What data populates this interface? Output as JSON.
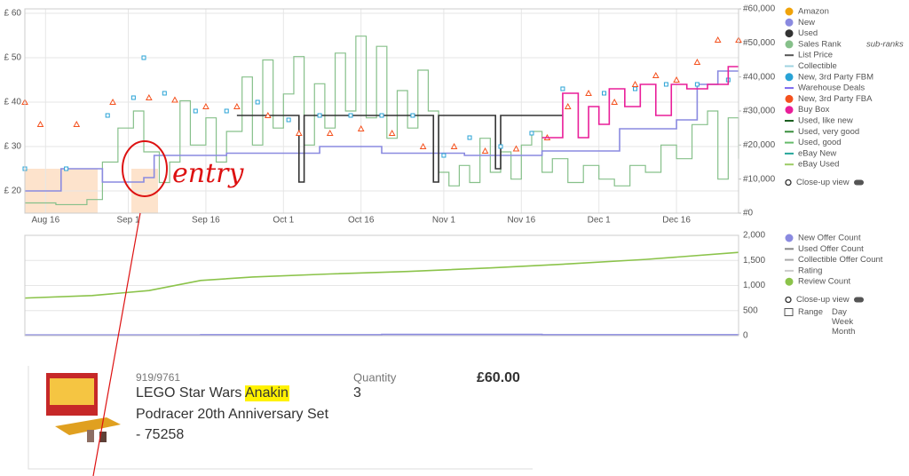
{
  "chart_data": [
    {
      "type": "line",
      "xlim": [
        "Aug 12",
        "Dec 28"
      ],
      "xticks": [
        "Aug 16",
        "Sep 1",
        "Sep 16",
        "Oct 1",
        "Oct 16",
        "Nov 1",
        "Nov 16",
        "Dec 1",
        "Dec 16"
      ],
      "ylim": [
        15,
        61
      ],
      "yticks": [
        {
          "value": 20,
          "label": "£ 20"
        },
        {
          "value": 30,
          "label": "£ 30"
        },
        {
          "value": 40,
          "label": "£ 40"
        },
        {
          "value": 50,
          "label": "£ 50"
        },
        {
          "value": 60,
          "label": "£ 60"
        }
      ],
      "y2lim": [
        0,
        60000
      ],
      "y2ticks": [
        {
          "value": 0,
          "label": "#0"
        },
        {
          "value": 10000,
          "label": "#10,000"
        },
        {
          "value": 20000,
          "label": "#20,000"
        },
        {
          "value": 30000,
          "label": "#30,000"
        },
        {
          "value": 40000,
          "label": "#40,000"
        },
        {
          "value": 50000,
          "label": "#50,000"
        },
        {
          "value": 60000,
          "label": "#60,000"
        }
      ],
      "grid": true,
      "legend": "right",
      "series": [
        {
          "name": "Amazon",
          "color": "#f0a30a",
          "legend_symbol": "circle",
          "style": "line",
          "x": [],
          "values": []
        },
        {
          "name": "New",
          "color": "#8a8ae0",
          "legend_symbol": "circle",
          "style": "step",
          "x": [
            "Aug 12",
            "Aug 18",
            "Aug 19",
            "Aug 26",
            "Aug 27",
            "Sep 4",
            "Sep 6",
            "Sep 20",
            "Oct 8",
            "Oct 20",
            "Nov 5",
            "Nov 20",
            "Dec 1",
            "Dec 5",
            "Dec 16",
            "Dec 20",
            "Dec 24",
            "Dec 28"
          ],
          "values": [
            20,
            20,
            25,
            25,
            22,
            23,
            28,
            28.5,
            30,
            28.5,
            28,
            29,
            29,
            34,
            36,
            44,
            47,
            47
          ]
        },
        {
          "name": "Used",
          "color": "#333333",
          "legend_symbol": "circle",
          "style": "step",
          "x": [
            "Sep 22",
            "Oct 3",
            "Oct 4",
            "Oct 5",
            "Oct 29",
            "Oct 30",
            "Oct 31",
            "Nov 10",
            "Nov 11",
            "Nov 12",
            "Nov 24"
          ],
          "values": [
            37,
            37,
            22,
            37,
            37,
            22,
            37,
            37,
            25,
            37,
            37
          ]
        },
        {
          "name": "Sales Rank",
          "color": "#86c08a",
          "legend_symbol": "circle",
          "style": "step",
          "axis": "y2",
          "x": [
            "Aug 12",
            "Aug 18",
            "Aug 24",
            "Aug 27",
            "Aug 30",
            "Sep 2",
            "Sep 4",
            "Sep 7",
            "Sep 9",
            "Sep 11",
            "Sep 13",
            "Sep 16",
            "Sep 18",
            "Sep 20",
            "Sep 23",
            "Sep 25",
            "Sep 27",
            "Sep 29",
            "Oct 1",
            "Oct 3",
            "Oct 5",
            "Oct 7",
            "Oct 9",
            "Oct 11",
            "Oct 13",
            "Oct 15",
            "Oct 17",
            "Oct 19",
            "Oct 21",
            "Oct 23",
            "Oct 25",
            "Oct 27",
            "Oct 29",
            "Oct 31",
            "Nov 2",
            "Nov 4",
            "Nov 6",
            "Nov 8",
            "Nov 10",
            "Nov 12",
            "Nov 14",
            "Nov 16",
            "Nov 18",
            "Nov 20",
            "Nov 22",
            "Nov 25",
            "Nov 28",
            "Dec 1",
            "Dec 4",
            "Dec 7",
            "Dec 10",
            "Dec 13",
            "Dec 16",
            "Dec 19",
            "Dec 22",
            "Dec 24",
            "Dec 26",
            "Dec 28"
          ],
          "values": [
            3000,
            2500,
            4000,
            15000,
            25000,
            30000,
            18000,
            9000,
            15000,
            33000,
            20000,
            28000,
            15000,
            24000,
            40000,
            20000,
            45000,
            25000,
            35000,
            46000,
            20000,
            38000,
            25000,
            47000,
            30000,
            52000,
            28000,
            49000,
            22000,
            36000,
            25000,
            42000,
            30000,
            12000,
            8000,
            14000,
            9000,
            22000,
            12000,
            18000,
            10000,
            20000,
            24000,
            12000,
            16000,
            9000,
            14000,
            10000,
            8000,
            14000,
            12000,
            20000,
            16000,
            26000,
            30000,
            10000,
            28000,
            16000
          ]
        },
        {
          "name": "List Price",
          "color": "#555555",
          "legend_symbol": "line",
          "style": "line",
          "x": [],
          "values": []
        },
        {
          "name": "Collectible",
          "color": "#9fd3e0",
          "legend_symbol": "line",
          "style": "line",
          "x": [],
          "values": []
        },
        {
          "name": "New, 3rd Party FBM",
          "color": "#29a3d6",
          "legend_symbol": "circle",
          "style": "squares",
          "x": [
            "Aug 12",
            "Aug 20",
            "Aug 28",
            "Sep 2",
            "Sep 4",
            "Sep 8",
            "Sep 14",
            "Sep 20",
            "Sep 26",
            "Oct 2",
            "Oct 8",
            "Oct 14",
            "Oct 20",
            "Oct 26",
            "Nov 1",
            "Nov 6",
            "Nov 12",
            "Nov 18",
            "Nov 24",
            "Dec 2",
            "Dec 8",
            "Dec 14",
            "Dec 20",
            "Dec 26"
          ],
          "values": [
            25,
            25,
            37,
            41,
            50,
            42,
            38,
            38,
            40,
            36,
            37,
            37,
            37,
            37,
            28,
            32,
            30,
            33,
            43,
            42,
            43,
            44,
            44,
            45
          ]
        },
        {
          "name": "Warehouse Deals",
          "color": "#7b68ee",
          "legend_symbol": "line",
          "style": "line",
          "x": [],
          "values": []
        },
        {
          "name": "New, 3rd Party FBA",
          "color": "#f4511e",
          "legend_symbol": "circle",
          "style": "triangles",
          "x": [
            "Aug 12",
            "Aug 15",
            "Aug 22",
            "Aug 29",
            "Sep 5",
            "Sep 10",
            "Sep 16",
            "Sep 22",
            "Sep 28",
            "Oct 4",
            "Oct 10",
            "Oct 16",
            "Oct 22",
            "Oct 28",
            "Nov 3",
            "Nov 9",
            "Nov 15",
            "Nov 21",
            "Nov 25",
            "Nov 29",
            "Dec 4",
            "Dec 8",
            "Dec 12",
            "Dec 16",
            "Dec 20",
            "Dec 24",
            "Dec 28"
          ],
          "values": [
            40,
            35,
            35,
            40,
            41,
            40.5,
            39,
            39,
            37,
            33,
            33,
            34,
            33,
            30,
            30,
            29,
            29.5,
            32,
            39,
            42,
            40,
            44,
            46,
            45,
            49,
            54,
            54
          ]
        },
        {
          "name": "Buy Box",
          "color": "#e91e99",
          "legend_symbol": "circle",
          "style": "step",
          "x": [
            "Nov 20",
            "Nov 24",
            "Nov 27",
            "Nov 29",
            "Dec 1",
            "Dec 3",
            "Dec 6",
            "Dec 9",
            "Dec 12",
            "Dec 15",
            "Dec 18",
            "Dec 22",
            "Dec 26",
            "Dec 28"
          ],
          "values": [
            32,
            42,
            32,
            39,
            35,
            43,
            39,
            44,
            37,
            44,
            43,
            44,
            48,
            48
          ]
        },
        {
          "name": "Used, like new",
          "color": "#1b5e20",
          "legend_symbol": "line",
          "style": "line",
          "x": [],
          "values": []
        },
        {
          "name": "Used, very good",
          "color": "#388e3c",
          "legend_symbol": "line",
          "style": "line",
          "x": [],
          "values": []
        },
        {
          "name": "Used, good",
          "color": "#66bb6a",
          "legend_symbol": "line",
          "style": "line",
          "x": [],
          "values": []
        },
        {
          "name": "eBay New",
          "color": "#26a69a",
          "legend_symbol": "line",
          "style": "line",
          "x": [],
          "values": []
        },
        {
          "name": "eBay Used",
          "color": "#9ccc65",
          "legend_symbol": "line",
          "style": "line",
          "x": [],
          "values": []
        }
      ]
    },
    {
      "type": "line",
      "xlim": [
        "Aug 12",
        "Dec 28"
      ],
      "ylim": [
        0,
        2000
      ],
      "y2ticks": [
        0,
        500,
        {
          "value": 1000,
          "label": "1,000"
        },
        {
          "value": 1500,
          "label": "1,500"
        },
        {
          "value": 2000,
          "label": "2,000"
        }
      ],
      "grid": true,
      "legend": "right",
      "series": [
        {
          "name": "New Offer Count",
          "color": "#8a8ae0",
          "legend_symbol": "circle",
          "style": "step",
          "x": [
            "Aug 12",
            "Sep 15",
            "Oct 20",
            "Nov 20",
            "Dec 28"
          ],
          "values": [
            15,
            20,
            25,
            20,
            18
          ]
        },
        {
          "name": "Used Offer Count",
          "color": "#888888",
          "legend_symbol": "line",
          "style": "line",
          "x": [],
          "values": []
        },
        {
          "name": "Collectible Offer Count",
          "color": "#aaaaaa",
          "legend_symbol": "line",
          "style": "line",
          "x": [],
          "values": []
        },
        {
          "name": "Rating",
          "color": "#cccccc",
          "legend_symbol": "line",
          "style": "line",
          "x": [],
          "values": []
        },
        {
          "name": "Review Count",
          "color": "#8bc34a",
          "legend_symbol": "circle",
          "style": "line",
          "x": [
            "Aug 12",
            "Aug 25",
            "Sep 5",
            "Sep 15",
            "Sep 25",
            "Oct 10",
            "Oct 25",
            "Nov 10",
            "Nov 25",
            "Dec 10",
            "Dec 28"
          ],
          "values": [
            750,
            800,
            900,
            1100,
            1170,
            1230,
            1280,
            1350,
            1430,
            1520,
            1660
          ]
        }
      ]
    }
  ],
  "ui": {
    "sub_ranks": "sub-ranks",
    "close_up_1": "Close-up view",
    "close_up_2": "Close-up view",
    "range": "Range",
    "range_options": [
      "Day",
      "Week",
      "Month"
    ]
  },
  "annotation": {
    "text": "entry"
  },
  "product": {
    "code": "919/9761",
    "title_before": "LEGO Star Wars ",
    "title_highlight": "Anakin",
    "title_line2": "Podracer 20th Anniversary Set",
    "title_line3": "- 75258",
    "quantity_label": "Quantity",
    "quantity": "3",
    "price": "£60.00"
  }
}
